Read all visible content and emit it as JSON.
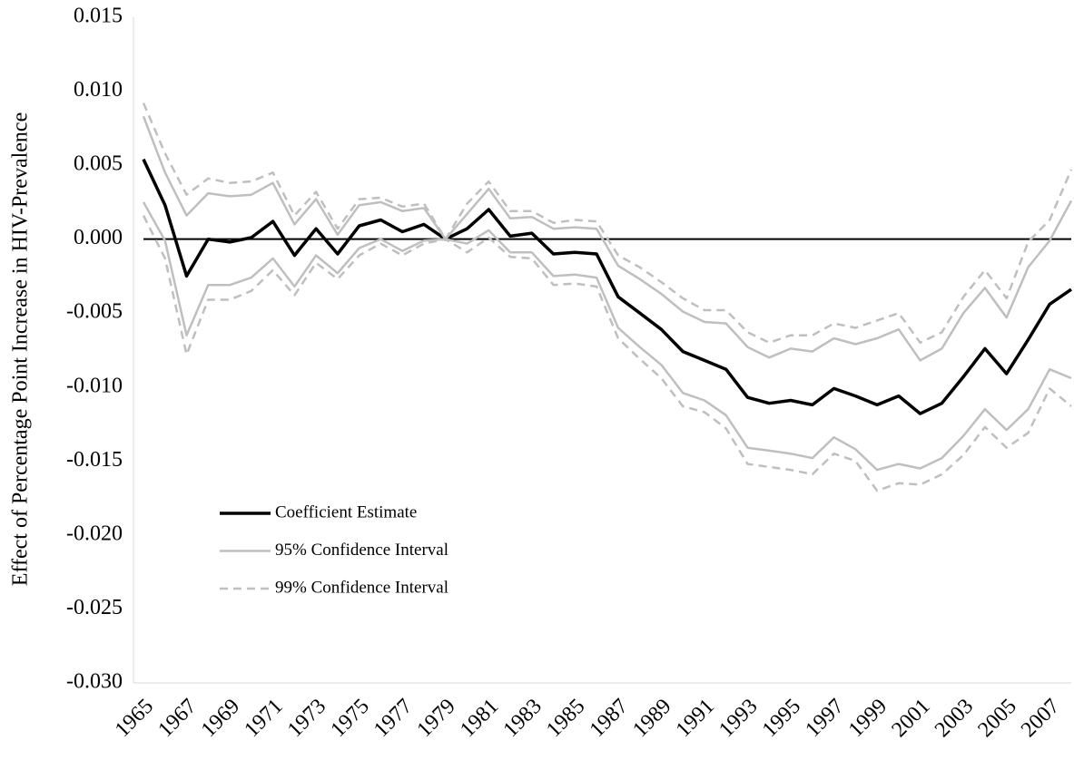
{
  "chart_data": {
    "type": "line",
    "y_label": "Effect of Percentage Point Increase in HIV-Prevalence",
    "categories": [
      "1965",
      null,
      "1967",
      null,
      "1969",
      null,
      "1971",
      null,
      "1973",
      null,
      "1975",
      null,
      "1977",
      null,
      "1979",
      null,
      "1981",
      null,
      "1983",
      null,
      "1985",
      null,
      "1987",
      null,
      "1989",
      null,
      "1991",
      null,
      "1993",
      null,
      "1995",
      null,
      "1997",
      null,
      "1999",
      null,
      "2001",
      null,
      "2003",
      null,
      "2005",
      null,
      "2007",
      null
    ],
    "ylim": [
      -0.03,
      0.015
    ],
    "yticks": [
      {
        "value": 0.015,
        "label": "0.015"
      },
      {
        "value": 0.01,
        "label": "0.010"
      },
      {
        "value": 0.005,
        "label": "0.005"
      },
      {
        "value": 0,
        "label": "0.000"
      },
      {
        "value": -0.005,
        "label": "-0.005"
      },
      {
        "value": -0.01,
        "label": "-0.010"
      },
      {
        "value": -0.015,
        "label": "-0.015"
      },
      {
        "value": -0.02,
        "label": "-0.020"
      },
      {
        "value": -0.025,
        "label": "-0.025"
      },
      {
        "value": -0.03,
        "label": "-0.030"
      }
    ],
    "legend": "lower-left",
    "series": [
      {
        "name": "Coefficient Estimate",
        "color": "#000000",
        "dashed": false,
        "values": [
          0.0054,
          0.0023,
          -0.0025,
          0.0,
          -0.0002,
          0.0001,
          0.0012,
          -0.0011,
          0.0007,
          -0.001,
          0.0009,
          0.0013,
          0.0005,
          0.001,
          0,
          0.0007,
          0.002,
          0.0002,
          0.0004,
          -0.001,
          -0.0009,
          -0.001,
          -0.0039,
          -0.005,
          -0.0061,
          -0.0076,
          -0.0082,
          -0.0088,
          -0.0107,
          -0.0111,
          -0.0109,
          -0.0112,
          -0.0101,
          -0.0106,
          -0.0112,
          -0.0106,
          -0.0118,
          -0.0111,
          -0.0093,
          -0.0074,
          -0.0091,
          -0.0068,
          -0.0044,
          -0.0034
        ]
      },
      {
        "name": "95% Confidence Interval",
        "color": "#bfbfbf",
        "dashed": false,
        "upper": [
          0.0083,
          0.0045,
          0.0016,
          0.0031,
          0.0029,
          0.003,
          0.0038,
          0.001,
          0.0027,
          0.0003,
          0.0023,
          0.0025,
          0.0019,
          0.0021,
          0,
          0.0017,
          0.0034,
          0.0014,
          0.0015,
          0.0007,
          0.0008,
          0.0007,
          -0.0018,
          -0.0027,
          -0.0037,
          -0.0049,
          -0.0056,
          -0.0057,
          -0.0073,
          -0.008,
          -0.0074,
          -0.0076,
          -0.0067,
          -0.0071,
          -0.0067,
          -0.0061,
          -0.0082,
          -0.0074,
          -0.005,
          -0.0033,
          -0.0053,
          -0.0019,
          -0.0001,
          0.0026
        ],
        "lower": [
          0.0025,
          -0.0001,
          -0.0065,
          -0.0031,
          -0.0031,
          -0.0026,
          -0.0013,
          -0.0032,
          -0.0011,
          -0.0023,
          -0.0006,
          0.0,
          -0.0008,
          -0.0001,
          0,
          -0.0003,
          0.0006,
          -0.0009,
          -0.0009,
          -0.0025,
          -0.0024,
          -0.0026,
          -0.006,
          -0.0073,
          -0.0085,
          -0.0104,
          -0.0109,
          -0.0119,
          -0.0141,
          -0.0143,
          -0.0145,
          -0.0148,
          -0.0134,
          -0.0142,
          -0.0156,
          -0.0152,
          -0.0155,
          -0.0148,
          -0.0133,
          -0.0115,
          -0.0129,
          -0.0115,
          -0.0088,
          -0.0094
        ]
      },
      {
        "name": "99% Confidence Interval",
        "color": "#bfbfbf",
        "dashed": true,
        "upper": [
          0.0092,
          0.0058,
          0.003,
          0.0041,
          0.0038,
          0.0039,
          0.0045,
          0.0016,
          0.0032,
          0.0007,
          0.0027,
          0.0028,
          0.0022,
          0.0024,
          0,
          0.0024,
          0.0039,
          0.0019,
          0.0019,
          0.0011,
          0.0013,
          0.0012,
          -0.0011,
          -0.0019,
          -0.0029,
          -0.004,
          -0.0048,
          -0.0048,
          -0.0063,
          -0.007,
          -0.0065,
          -0.0065,
          -0.0057,
          -0.006,
          -0.0055,
          -0.005,
          -0.007,
          -0.0063,
          -0.0039,
          -0.0021,
          -0.004,
          -0.0002,
          0.0013,
          0.0047
        ],
        "lower": [
          0.0016,
          -0.0013,
          -0.0078,
          -0.0041,
          -0.0041,
          -0.0035,
          -0.0021,
          -0.0038,
          -0.0016,
          -0.0027,
          -0.0011,
          -0.0003,
          -0.0011,
          -0.0003,
          0,
          -0.0009,
          0.0001,
          -0.0012,
          -0.0013,
          -0.0031,
          -0.003,
          -0.0032,
          -0.0067,
          -0.0081,
          -0.0094,
          -0.0113,
          -0.0117,
          -0.0128,
          -0.0152,
          -0.0154,
          -0.0156,
          -0.0159,
          -0.0145,
          -0.015,
          -0.017,
          -0.0165,
          -0.0166,
          -0.0159,
          -0.0146,
          -0.0127,
          -0.0141,
          -0.0131,
          -0.0101,
          -0.0113
        ]
      }
    ]
  }
}
